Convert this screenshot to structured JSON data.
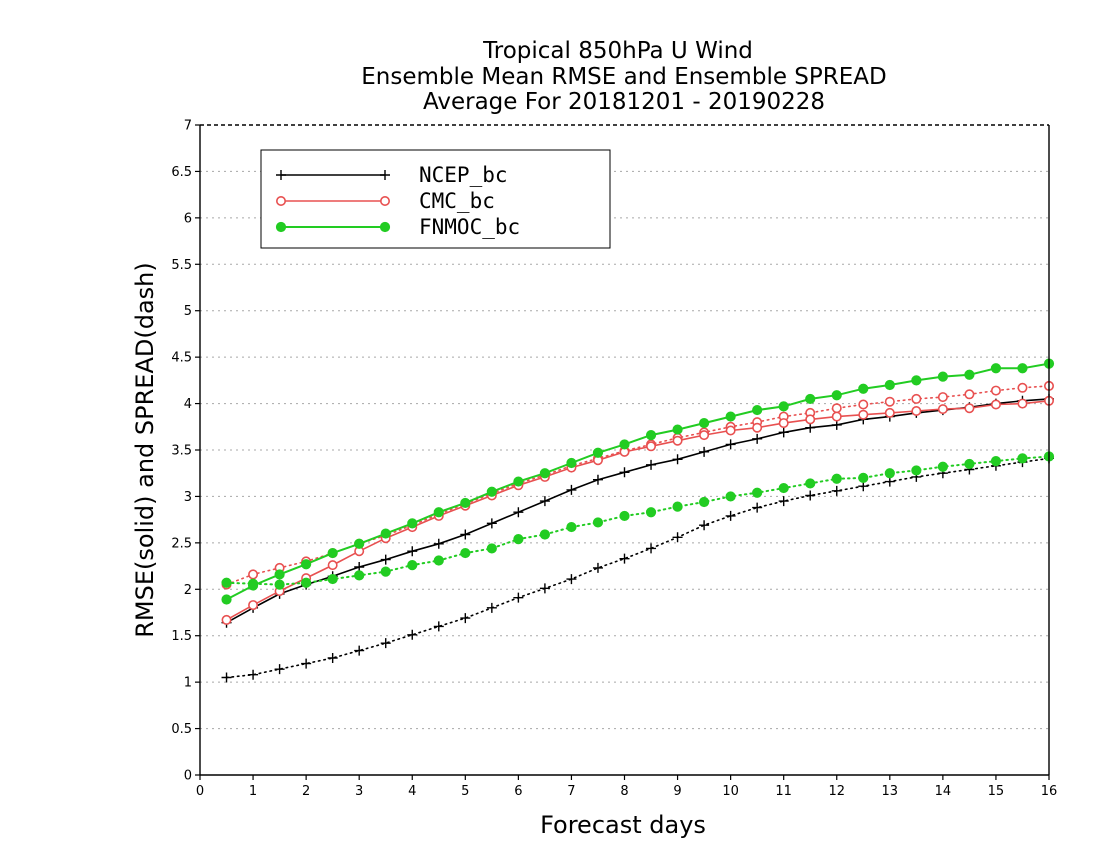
{
  "chart_data": {
    "type": "line",
    "title": [
      "Tropical 850hPa U Wind",
      "Ensemble Mean RMSE and Ensemble SPREAD",
      "Average For 20181201 - 20190228"
    ],
    "xlabel": "Forecast days",
    "ylabel": "RMSE(solid) and SPREAD(dash)",
    "xlim": [
      0,
      16
    ],
    "ylim": [
      0,
      7
    ],
    "xticks": [
      "0",
      "1",
      "2",
      "3",
      "4",
      "5",
      "6",
      "7",
      "8",
      "9",
      "10",
      "11",
      "12",
      "13",
      "14",
      "15",
      "16"
    ],
    "yticks": [
      "0",
      "0.5",
      "1",
      "1.5",
      "2",
      "2.5",
      "3",
      "3.5",
      "4",
      "4.5",
      "5",
      "5.5",
      "6",
      "6.5",
      "7"
    ],
    "grid": true,
    "legend_position": "top-left",
    "x": [
      0.5,
      1,
      1.5,
      2,
      2.5,
      3,
      3.5,
      4,
      4.5,
      5,
      5.5,
      6,
      6.5,
      7,
      7.5,
      8,
      8.5,
      9,
      9.5,
      10,
      10.5,
      11,
      11.5,
      12,
      12.5,
      13,
      13.5,
      14,
      14.5,
      15,
      15.5,
      16
    ],
    "series": [
      {
        "name": "NCEP_bc",
        "color": "#000000",
        "marker": "plus",
        "rmse": [
          1.64,
          1.8,
          1.95,
          2.05,
          2.14,
          2.24,
          2.32,
          2.41,
          2.49,
          2.59,
          2.71,
          2.83,
          2.95,
          3.07,
          3.18,
          3.26,
          3.34,
          3.4,
          3.48,
          3.56,
          3.62,
          3.69,
          3.74,
          3.77,
          3.83,
          3.86,
          3.9,
          3.93,
          3.96,
          4.0,
          4.03,
          4.05
        ],
        "spread": [
          1.05,
          1.08,
          1.14,
          1.2,
          1.26,
          1.34,
          1.42,
          1.51,
          1.6,
          1.69,
          1.8,
          1.91,
          2.01,
          2.11,
          2.23,
          2.33,
          2.44,
          2.56,
          2.69,
          2.79,
          2.88,
          2.95,
          3.01,
          3.06,
          3.11,
          3.16,
          3.21,
          3.25,
          3.29,
          3.33,
          3.37,
          3.41
        ]
      },
      {
        "name": "CMC_bc",
        "color": "#e85050",
        "marker": "open-circle",
        "rmse": [
          1.67,
          1.83,
          1.98,
          2.12,
          2.26,
          2.41,
          2.55,
          2.67,
          2.79,
          2.9,
          3.01,
          3.12,
          3.21,
          3.31,
          3.39,
          3.48,
          3.54,
          3.6,
          3.66,
          3.71,
          3.74,
          3.79,
          3.83,
          3.86,
          3.88,
          3.9,
          3.92,
          3.94,
          3.95,
          3.99,
          4.0,
          4.03
        ],
        "spread": [
          2.05,
          2.16,
          2.23,
          2.3,
          2.39,
          2.49,
          2.58,
          2.69,
          2.81,
          2.92,
          3.03,
          3.14,
          3.23,
          3.33,
          3.41,
          3.49,
          3.56,
          3.63,
          3.69,
          3.75,
          3.8,
          3.86,
          3.9,
          3.95,
          3.99,
          4.02,
          4.05,
          4.07,
          4.1,
          4.14,
          4.17,
          4.19
        ]
      },
      {
        "name": "FNMOC_bc",
        "color": "#22cc22",
        "marker": "filled-circle",
        "rmse": [
          1.89,
          2.04,
          2.16,
          2.27,
          2.39,
          2.49,
          2.6,
          2.71,
          2.83,
          2.93,
          3.05,
          3.16,
          3.25,
          3.36,
          3.47,
          3.56,
          3.66,
          3.72,
          3.79,
          3.86,
          3.93,
          3.97,
          4.05,
          4.09,
          4.16,
          4.2,
          4.25,
          4.29,
          4.31,
          4.38,
          4.38,
          4.43
        ],
        "spread": [
          2.07,
          2.06,
          2.05,
          2.07,
          2.11,
          2.15,
          2.19,
          2.26,
          2.31,
          2.39,
          2.44,
          2.54,
          2.59,
          2.67,
          2.72,
          2.79,
          2.83,
          2.89,
          2.94,
          3.0,
          3.04,
          3.09,
          3.14,
          3.19,
          3.2,
          3.25,
          3.28,
          3.32,
          3.35,
          3.38,
          3.41,
          3.43
        ]
      }
    ]
  }
}
